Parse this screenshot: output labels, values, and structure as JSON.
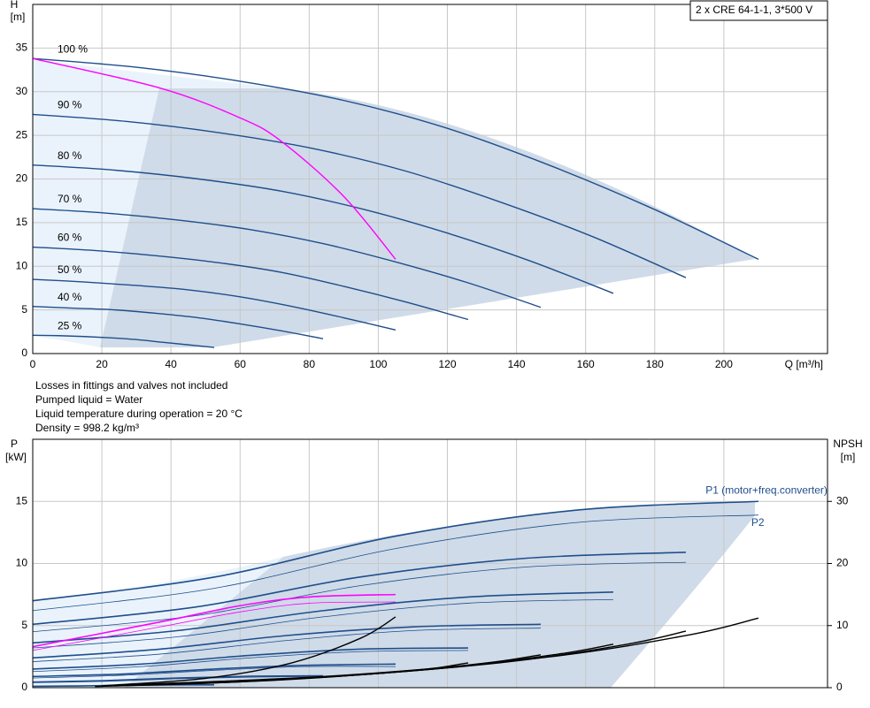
{
  "chart_data": [
    {
      "type": "line",
      "info": "2 x CRE 64-1-1, 3*500 V",
      "ylabel": [
        "H",
        "[m]"
      ],
      "xlabel": "Q [m³/h]",
      "xlim": [
        0,
        230
      ],
      "xticks": [
        0,
        20,
        40,
        60,
        80,
        100,
        120,
        140,
        160,
        180,
        200
      ],
      "ylim": [
        0,
        40
      ],
      "yticks": [
        0,
        5,
        10,
        15,
        20,
        25,
        30,
        35
      ],
      "grid": true,
      "series": [
        {
          "name": "100 %",
          "color": "#1f4e8c",
          "x": [
            0,
            30,
            60,
            90,
            120,
            150,
            180,
            210
          ],
          "values": [
            33.8,
            32.8,
            31.2,
            29.0,
            25.8,
            21.5,
            16.5,
            10.8
          ]
        },
        {
          "name": "90 %",
          "color": "#1f4e8c",
          "x": [
            0,
            27,
            54,
            81,
            108,
            135,
            162,
            189
          ],
          "values": [
            27.4,
            26.6,
            25.3,
            23.5,
            20.9,
            17.4,
            13.4,
            8.7
          ]
        },
        {
          "name": "80 %",
          "color": "#1f4e8c",
          "x": [
            0,
            24,
            48,
            72,
            96,
            120,
            144,
            168
          ],
          "values": [
            21.6,
            21.0,
            20.0,
            18.6,
            16.5,
            13.8,
            10.6,
            6.9
          ]
        },
        {
          "name": "70 %",
          "color": "#1f4e8c",
          "x": [
            0,
            21,
            42,
            63,
            84,
            105,
            126,
            147
          ],
          "values": [
            16.6,
            16.1,
            15.3,
            14.2,
            12.6,
            10.5,
            8.1,
            5.3
          ]
        },
        {
          "name": "60 %",
          "color": "#1f4e8c",
          "x": [
            0,
            18,
            36,
            54,
            72,
            90,
            108,
            126
          ],
          "values": [
            12.2,
            11.8,
            11.2,
            10.4,
            9.3,
            7.7,
            5.9,
            3.9
          ]
        },
        {
          "name": "50 %",
          "color": "#1f4e8c",
          "x": [
            0,
            15,
            30,
            45,
            60,
            75,
            90,
            105
          ],
          "values": [
            8.5,
            8.2,
            7.8,
            7.3,
            6.5,
            5.4,
            4.1,
            2.7
          ]
        },
        {
          "name": "40 %",
          "color": "#1f4e8c",
          "x": [
            0,
            12,
            24,
            36,
            48,
            60,
            72,
            84
          ],
          "values": [
            5.4,
            5.2,
            5.0,
            4.6,
            4.1,
            3.4,
            2.6,
            1.7
          ]
        },
        {
          "name": "25 %",
          "color": "#1f4e8c",
          "x": [
            0,
            7.5,
            15,
            22.5,
            30,
            37.5,
            45,
            52.5
          ],
          "values": [
            2.1,
            2.05,
            1.95,
            1.8,
            1.6,
            1.3,
            1.0,
            0.7
          ]
        },
        {
          "color": "#ff00ff",
          "x": [
            0,
            37,
            60,
            72,
            90,
            105
          ],
          "values": [
            33.8,
            30.4,
            27.0,
            24.3,
            18.0,
            10.8
          ]
        }
      ]
    },
    {
      "type": "line",
      "notes": [
        "Losses in fittings and valves not included",
        "Pumped liquid = Water",
        "Liquid temperature during operation = 20 °C",
        "Density = 998.2 kg/m³"
      ],
      "ylabel": [
        "P",
        "[kW]"
      ],
      "y2label": [
        "NPSH",
        "[m]"
      ],
      "xlim": [
        0,
        230
      ],
      "xticks": [
        0,
        20,
        40,
        60,
        80,
        100,
        120,
        140,
        160,
        180,
        200
      ],
      "ylim": [
        0,
        20
      ],
      "yticks": [
        0,
        5,
        10,
        15
      ],
      "y2lim": [
        0,
        40
      ],
      "y2ticks": [
        0,
        10,
        20,
        30
      ],
      "grid": true,
      "series": [
        {
          "name": "P1 (motor+freq.converter)",
          "color": "#1f4e8c",
          "width": 1.6,
          "x": [
            0,
            52.5,
            105,
            157.5,
            210
          ],
          "values": [
            7.0,
            8.9,
            12.2,
            14.3,
            15.0
          ]
        },
        {
          "name": "P2",
          "color": "#1f4e8c",
          "width": 0.8,
          "x": [
            0,
            52.5,
            105,
            157.5,
            210
          ],
          "values": [
            6.2,
            8.0,
            11.2,
            13.3,
            13.9
          ]
        },
        {
          "color": "#1f4e8c",
          "width": 1.6,
          "x": [
            0,
            47.25,
            94.5,
            141.75,
            189
          ],
          "values": [
            5.1,
            6.5,
            8.9,
            10.4,
            10.9
          ]
        },
        {
          "color": "#1f4e8c",
          "width": 0.8,
          "x": [
            0,
            47.25,
            94.5,
            141.75,
            189
          ],
          "values": [
            4.5,
            5.8,
            8.2,
            9.7,
            10.1
          ]
        },
        {
          "color": "#1f4e8c",
          "width": 1.6,
          "x": [
            0,
            42,
            84,
            126,
            168
          ],
          "values": [
            3.6,
            4.6,
            6.2,
            7.3,
            7.7
          ]
        },
        {
          "color": "#1f4e8c",
          "width": 0.8,
          "x": [
            0,
            42,
            84,
            126,
            168
          ],
          "values": [
            3.2,
            4.1,
            5.7,
            6.8,
            7.1
          ]
        },
        {
          "color": "#1f4e8c",
          "width": 1.6,
          "x": [
            0,
            36.75,
            73.5,
            110.25,
            147
          ],
          "values": [
            2.4,
            3.1,
            4.2,
            4.9,
            5.1
          ]
        },
        {
          "color": "#1f4e8c",
          "width": 0.8,
          "x": [
            0,
            36.75,
            73.5,
            110.25,
            147
          ],
          "values": [
            2.1,
            2.7,
            3.8,
            4.6,
            4.8
          ]
        },
        {
          "color": "#1f4e8c",
          "width": 1.6,
          "x": [
            0,
            31.5,
            63,
            94.5,
            126
          ],
          "values": [
            1.5,
            1.9,
            2.6,
            3.1,
            3.2
          ]
        },
        {
          "color": "#1f4e8c",
          "width": 0.8,
          "x": [
            0,
            31.5,
            63,
            94.5,
            126
          ],
          "values": [
            1.3,
            1.7,
            2.4,
            2.9,
            3.0
          ]
        },
        {
          "color": "#1f4e8c",
          "width": 1.6,
          "x": [
            0,
            26.25,
            52.5,
            78.75,
            105
          ],
          "values": [
            0.9,
            1.1,
            1.5,
            1.8,
            1.9
          ]
        },
        {
          "color": "#1f4e8c",
          "width": 0.8,
          "x": [
            0,
            26.25,
            52.5,
            78.75,
            105
          ],
          "values": [
            0.78,
            1.0,
            1.4,
            1.7,
            1.7
          ]
        },
        {
          "color": "#1f4e8c",
          "width": 1.6,
          "x": [
            0,
            21,
            42,
            63,
            84
          ],
          "values": [
            0.45,
            0.57,
            0.78,
            0.92,
            0.96
          ]
        },
        {
          "color": "#1f4e8c",
          "width": 0.8,
          "x": [
            0,
            21,
            42,
            63,
            84
          ],
          "values": [
            0.4,
            0.51,
            0.72,
            0.85,
            0.89
          ]
        },
        {
          "color": "#1f4e8c",
          "width": 1.6,
          "x": [
            0,
            13.1,
            26.25,
            39.4,
            52.5
          ],
          "values": [
            0.11,
            0.14,
            0.19,
            0.22,
            0.23
          ]
        },
        {
          "color": "#1f4e8c",
          "width": 0.8,
          "x": [
            0,
            13.1,
            26.25,
            39.4,
            52.5
          ],
          "values": [
            0.1,
            0.13,
            0.17,
            0.21,
            0.22
          ]
        },
        {
          "color": "#ff00ff",
          "width": 1.6,
          "x": [
            0,
            37,
            60,
            80,
            105
          ],
          "values": [
            3.3,
            5.3,
            6.6,
            7.3,
            7.5
          ]
        },
        {
          "color": "#ff00ff",
          "width": 0.8,
          "x": [
            0,
            37,
            60,
            80,
            105
          ],
          "values": [
            3.0,
            4.9,
            6.1,
            6.8,
            6.9
          ]
        },
        {
          "color": "#000000",
          "width": 1.4,
          "axis": "y2",
          "x": [
            30,
            90,
            150,
            190,
            210
          ],
          "values": [
            0.5,
            2.0,
            5.0,
            8.5,
            11.2
          ]
        },
        {
          "color": "#000000",
          "width": 1.4,
          "axis": "y2",
          "x": [
            27,
            81,
            135,
            171,
            189
          ],
          "values": [
            0.4,
            1.6,
            4.0,
            6.9,
            9.1
          ]
        },
        {
          "color": "#000000",
          "width": 1.4,
          "axis": "y2",
          "x": [
            24,
            72,
            120,
            152,
            168
          ],
          "values": [
            0.3,
            1.3,
            3.2,
            5.4,
            7.0
          ]
        },
        {
          "color": "#000000",
          "width": 1.4,
          "axis": "y2",
          "x": [
            21,
            63,
            105,
            133,
            147
          ],
          "values": [
            0.3,
            1.0,
            2.5,
            4.1,
            5.3
          ]
        },
        {
          "color": "#000000",
          "width": 1.4,
          "axis": "y2",
          "x": [
            18,
            54,
            90,
            114,
            126
          ],
          "values": [
            0.2,
            0.8,
            1.9,
            3.0,
            4.0
          ]
        },
        {
          "color": "#000000",
          "width": 1.4,
          "axis": "y2",
          "x": [
            20,
            50,
            75,
            95,
            105
          ],
          "values": [
            0.3,
            1.5,
            4.0,
            8.0,
            11.4
          ]
        }
      ]
    }
  ]
}
